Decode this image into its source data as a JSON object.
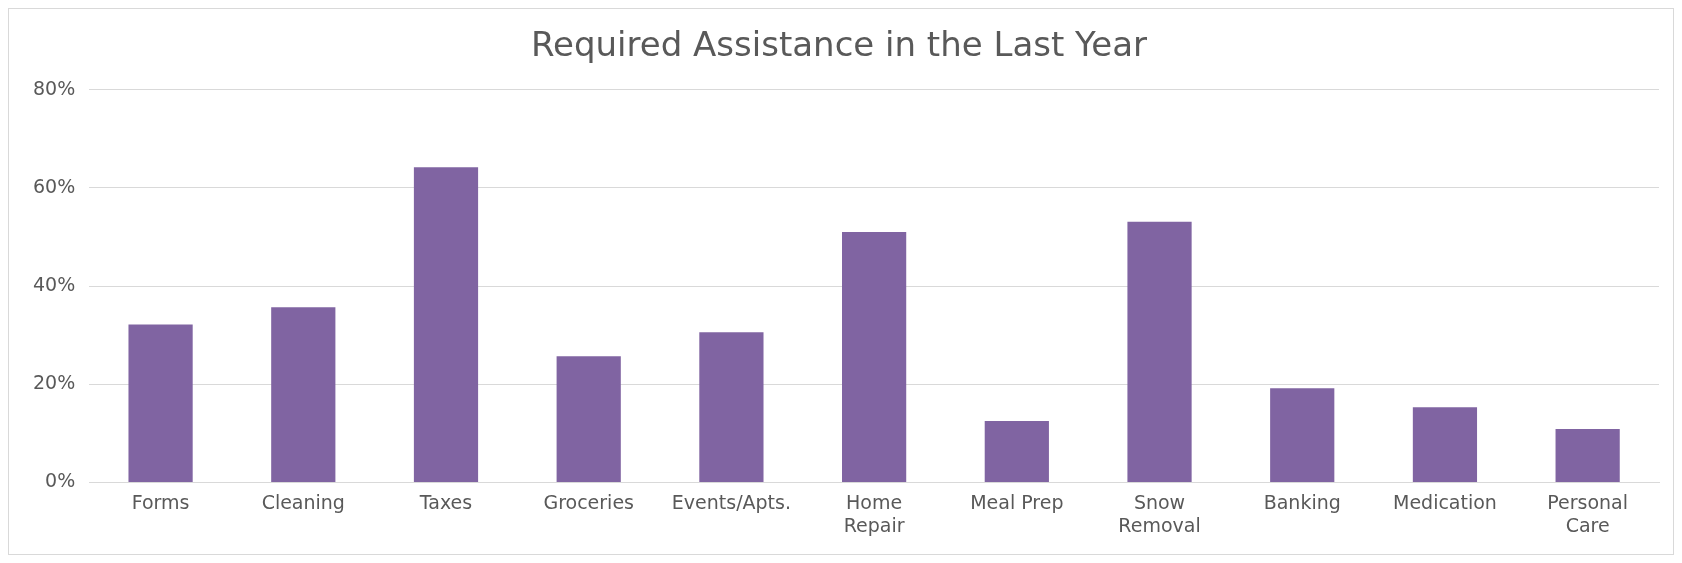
{
  "chart_data": {
    "type": "bar",
    "title": "Required Assistance in the Last Year",
    "categories": [
      "Forms",
      "Cleaning",
      "Taxes",
      "Groceries",
      "Events/Apts.",
      "Home Repair",
      "Meal Prep",
      "Snow Removal",
      "Banking",
      "Medication",
      "Personal Care"
    ],
    "values": [
      32.2,
      35.7,
      64.2,
      25.7,
      30.6,
      51.0,
      12.5,
      53.1,
      19.2,
      15.3,
      10.9
    ],
    "color": "#8064a2",
    "ylim": [
      0,
      80
    ],
    "yticks": [
      {
        "value": 0,
        "label": "0%"
      },
      {
        "value": 20,
        "label": "20%"
      },
      {
        "value": 40,
        "label": "40%"
      },
      {
        "value": 60,
        "label": "60%"
      },
      {
        "value": 80,
        "label": "80%"
      }
    ],
    "grid": "y",
    "legend": false
  }
}
